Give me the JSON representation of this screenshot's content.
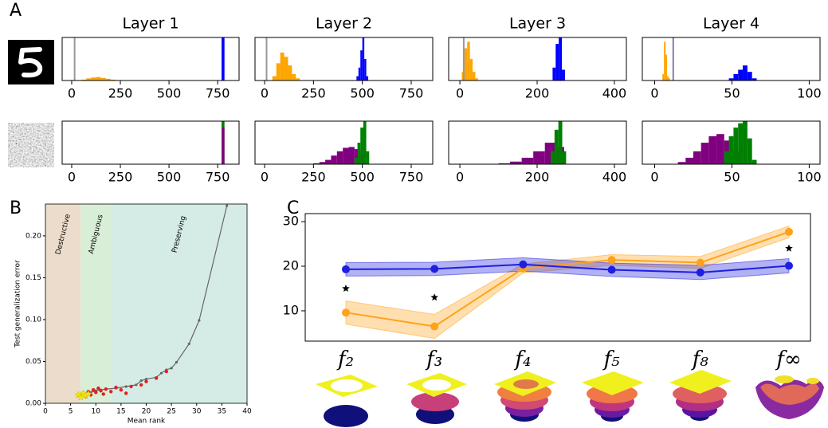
{
  "panel_labels": [
    "A",
    "B",
    "C"
  ],
  "chart_data": [
    {
      "type": "histogram",
      "title": "Layer 1",
      "xlim": [
        -49,
        860
      ],
      "ylim": [
        0,
        1
      ],
      "xticks": [
        0,
        250,
        500,
        750
      ],
      "vlines": [
        {
          "x": 15,
          "color": "#999999"
        }
      ],
      "series": [
        {
          "color": "#ffa500",
          "bins": [
            50,
            75,
            100,
            125,
            150,
            175,
            200,
            225
          ],
          "values": [
            0.02,
            0.05,
            0.07,
            0.08,
            0.06,
            0.04,
            0.02
          ]
        },
        {
          "color": "#0000ff",
          "bins": [
            770,
            785
          ],
          "values": [
            1
          ]
        }
      ]
    },
    {
      "type": "histogram",
      "title": "Layer 2",
      "xlim": [
        -49,
        860
      ],
      "ylim": [
        0,
        1
      ],
      "xticks": [
        0,
        250,
        500,
        750
      ],
      "vlines": [
        {
          "x": 10,
          "color": "#999999"
        }
      ],
      "series": [
        {
          "color": "#ffa500",
          "bins": [
            40,
            60,
            80,
            100,
            120,
            140,
            160,
            180
          ],
          "values": [
            0.1,
            0.4,
            0.65,
            0.55,
            0.35,
            0.15,
            0.05
          ]
        },
        {
          "color": "#0000ff",
          "bins": [
            470,
            480,
            490,
            500,
            510,
            520,
            530
          ],
          "values": [
            0.1,
            0.3,
            0.7,
            1.0,
            0.5,
            0.1
          ]
        }
      ]
    },
    {
      "type": "histogram",
      "title": "Layer 3",
      "xlim": [
        -29,
        431
      ],
      "ylim": [
        0,
        1
      ],
      "xticks": [
        0,
        200,
        400
      ],
      "vlines": [
        {
          "x": 10,
          "color": "#999999"
        }
      ],
      "series": [
        {
          "color": "#ffa500",
          "bins": [
            5,
            12,
            19,
            26,
            33,
            40,
            47
          ],
          "values": [
            0.2,
            0.75,
            0.9,
            0.5,
            0.2,
            0.05
          ]
        },
        {
          "color": "#0000ff",
          "bins": [
            240,
            248,
            256,
            264,
            272
          ],
          "values": [
            0.3,
            0.85,
            1.0,
            0.25
          ]
        }
      ]
    },
    {
      "type": "histogram",
      "title": "Layer 4",
      "xlim": [
        -8,
        107
      ],
      "ylim": [
        0,
        1
      ],
      "xticks": [
        0,
        50,
        100
      ],
      "vlines": [
        {
          "x": 12,
          "color": "#8e7aa8"
        }
      ],
      "series": [
        {
          "color": "#ffa500",
          "bins": [
            5,
            6,
            7,
            8,
            9,
            10
          ],
          "values": [
            0.15,
            0.9,
            0.6,
            0.1,
            0.05
          ]
        },
        {
          "color": "#0000ff",
          "bins": [
            48,
            51,
            54,
            57,
            60,
            63,
            66
          ],
          "values": [
            0.05,
            0.15,
            0.25,
            0.35,
            0.2,
            0.05
          ]
        }
      ]
    },
    {
      "type": "histogram",
      "xlim": [
        -49,
        860
      ],
      "ylim": [
        0,
        1
      ],
      "xticks": [
        0,
        250,
        500,
        750
      ],
      "series": [
        {
          "color": "#008000",
          "bins": [
            770,
            785
          ],
          "values": [
            1
          ]
        },
        {
          "color": "#800080",
          "bins": [
            770,
            785
          ],
          "values": [
            0.85
          ]
        }
      ]
    },
    {
      "type": "histogram",
      "xlim": [
        -49,
        860
      ],
      "ylim": [
        0,
        1
      ],
      "xticks": [
        0,
        250,
        500,
        750
      ],
      "series": [
        {
          "color": "#800080",
          "bins": [
            250,
            280,
            310,
            340,
            370,
            400,
            430,
            460,
            490,
            520
          ],
          "values": [
            0.02,
            0.05,
            0.1,
            0.2,
            0.3,
            0.38,
            0.4,
            0.35,
            0.25
          ]
        },
        {
          "color": "#008000",
          "bins": [
            460,
            475,
            490,
            505,
            520,
            535
          ],
          "values": [
            0.15,
            0.5,
            0.85,
            1.0,
            0.3
          ]
        }
      ]
    },
    {
      "type": "histogram",
      "xlim": [
        -29,
        431
      ],
      "ylim": [
        0,
        1
      ],
      "xticks": [
        0,
        200,
        400
      ],
      "series": [
        {
          "color": "#800080",
          "bins": [
            100,
            130,
            160,
            190,
            220,
            250,
            270
          ],
          "values": [
            0.02,
            0.06,
            0.15,
            0.3,
            0.5,
            0.4
          ]
        },
        {
          "color": "#008000",
          "bins": [
            235,
            245,
            255,
            265,
            275
          ],
          "values": [
            0.3,
            0.8,
            1.0,
            0.3
          ]
        }
      ]
    },
    {
      "type": "histogram",
      "xlim": [
        -8,
        107
      ],
      "ylim": [
        0,
        1
      ],
      "xticks": [
        0,
        50,
        100
      ],
      "series": [
        {
          "color": "#800080",
          "bins": [
            15,
            20,
            25,
            30,
            35,
            40,
            45,
            50,
            55
          ],
          "values": [
            0.05,
            0.15,
            0.3,
            0.5,
            0.65,
            0.7,
            0.55,
            0.3
          ]
        },
        {
          "color": "#008000",
          "bins": [
            45,
            48,
            51,
            54,
            57,
            60,
            63,
            66
          ],
          "values": [
            0.3,
            0.65,
            0.85,
            0.95,
            1.0,
            0.6,
            0.1
          ]
        }
      ]
    },
    {
      "type": "scatter",
      "x_label": "Mean rank",
      "y_label": "Test generalization error",
      "xlim": [
        0,
        40
      ],
      "ylim": [
        0,
        0.238
      ],
      "xticks": [
        0,
        5,
        10,
        15,
        20,
        25,
        30,
        35,
        40
      ],
      "yticks": [
        {
          "value": 0,
          "label": "0.00"
        },
        {
          "value": 0.05,
          "label": "0.05"
        },
        {
          "value": 0.1,
          "label": "0.10"
        },
        {
          "value": 0.15,
          "label": "0.15"
        },
        {
          "value": 0.2,
          "label": "0.20"
        }
      ],
      "regions": [
        {
          "label": "Destructive",
          "x0": 0,
          "x1": 7,
          "color": "#ecdccb"
        },
        {
          "label": "Ambiguous",
          "x0": 7,
          "x1": 13,
          "color": "#d9eed7"
        },
        {
          "label": "Preserving",
          "x0": 13,
          "x1": 40,
          "color": "#d5ebe6"
        }
      ],
      "series": [
        {
          "color": "#666666",
          "marker": "circle",
          "connected": true,
          "x": [
            7,
            8,
            9,
            10,
            11,
            12,
            14,
            16,
            18,
            19,
            20,
            22,
            23,
            24,
            25,
            26,
            28.5,
            30.5,
            36
          ],
          "values": [
            0.01,
            0.011,
            0.013,
            0.015,
            0.016,
            0.017,
            0.018,
            0.02,
            0.022,
            0.027,
            0.029,
            0.031,
            0.036,
            0.04,
            0.042,
            0.049,
            0.071,
            0.099,
            0.236
          ]
        },
        {
          "color": "#dd2222",
          "marker": "circle",
          "connected": false,
          "x": [
            7.5,
            8,
            8.5,
            9,
            9.5,
            10,
            10.5,
            11,
            11.5,
            12,
            13,
            14,
            15,
            16,
            17,
            19,
            20,
            22,
            24
          ],
          "values": [
            0.012,
            0.008,
            0.014,
            0.01,
            0.016,
            0.013,
            0.018,
            0.015,
            0.011,
            0.017,
            0.014,
            0.019,
            0.016,
            0.012,
            0.02,
            0.022,
            0.026,
            0.03,
            0.038
          ]
        },
        {
          "color": "#f2e21a",
          "marker": "star",
          "connected": false,
          "x": [
            6.5,
            7,
            7.5,
            8,
            8.5
          ],
          "values": [
            0.01,
            0.007,
            0.012,
            0.009,
            0.011
          ]
        }
      ]
    },
    {
      "type": "line",
      "categories": [
        "f₂",
        "f₃",
        "f₄",
        "f₅",
        "f₈",
        "f∞"
      ],
      "ylim": [
        3.2,
        31.8
      ],
      "yticks": [
        10,
        20,
        30
      ],
      "series": [
        {
          "color": "#ffa21a",
          "values": [
            9.6,
            6.5,
            19.5,
            21.4,
            20.8,
            27.7
          ],
          "lower": [
            7.0,
            3.8,
            18.5,
            20.2,
            19.5,
            26.4
          ],
          "upper": [
            12.2,
            9.2,
            20.5,
            22.6,
            22.2,
            29.0
          ]
        },
        {
          "color": "#1f1fe0",
          "values": [
            19.3,
            19.4,
            20.4,
            19.2,
            18.6,
            20.1
          ],
          "lower": [
            17.8,
            17.9,
            18.9,
            17.7,
            17.0,
            18.5
          ],
          "upper": [
            20.8,
            20.9,
            21.9,
            20.7,
            20.2,
            21.7
          ]
        }
      ],
      "stars": [
        15,
        13,
        null,
        null,
        null,
        24
      ]
    }
  ]
}
